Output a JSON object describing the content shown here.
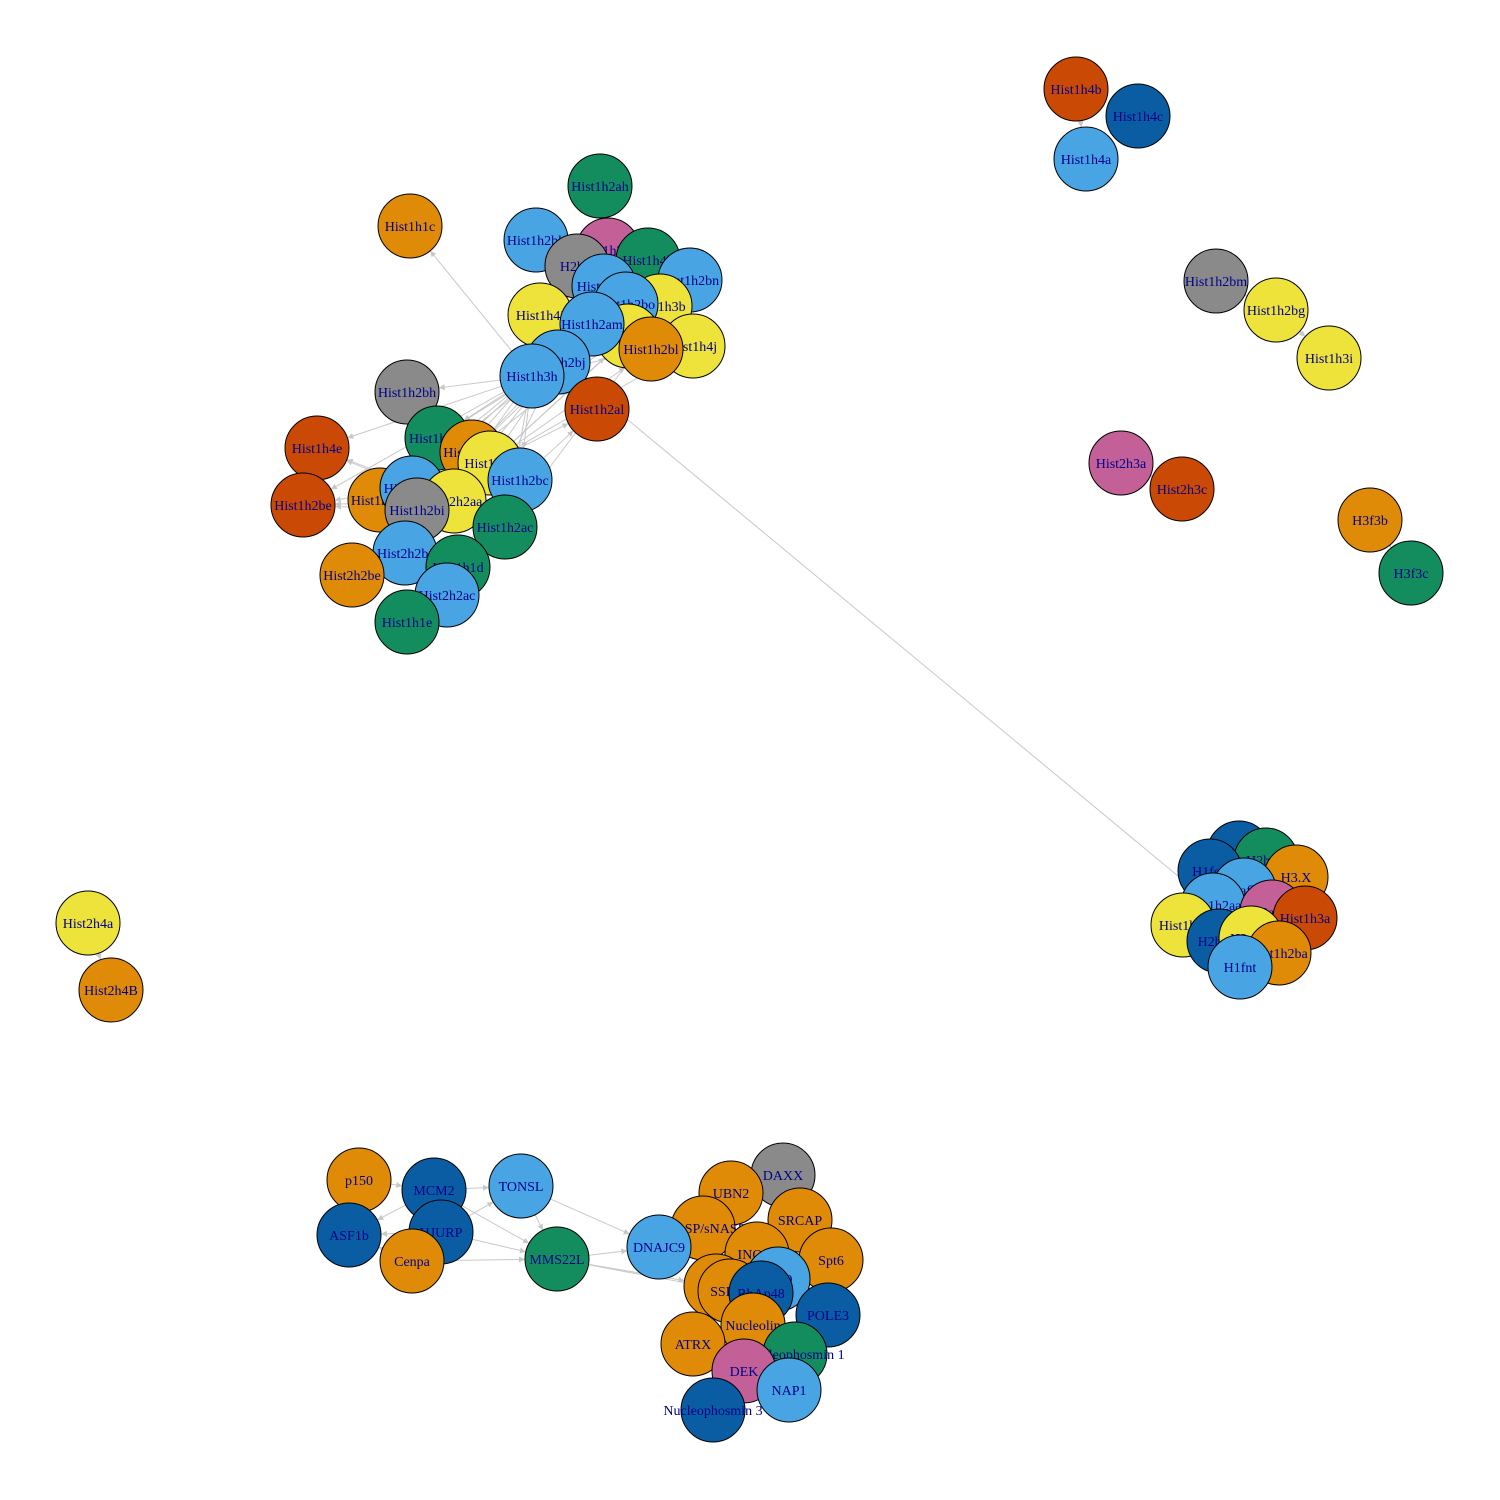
{
  "colors": {
    "orange": "#E08B08",
    "lightblue": "#49A4E4",
    "darkblue": "#0A5DA2",
    "green": "#148D5E",
    "yellow": "#EDE33A",
    "red": "#CA4A05",
    "pink": "#C26097",
    "gray": "#8A8A8A",
    "edge": "#C8C8C8",
    "label": "#00008B"
  },
  "nodes": [
    {
      "label": "Hist1h2ah",
      "color": "green"
    },
    {
      "label": "Hist1h1c",
      "color": "orange"
    },
    {
      "label": "Hist1h2bk",
      "color": "lightblue"
    },
    {
      "label": "Hist1h2ag",
      "color": "pink"
    },
    {
      "label": "Hist1h4k",
      "color": "green"
    },
    {
      "label": "H2bfs",
      "color": "gray"
    },
    {
      "label": "Hist1h2bn",
      "color": "lightblue"
    },
    {
      "label": "Hist1h4i",
      "color": "yellow"
    },
    {
      "label": "Hist1h3b",
      "color": "yellow"
    },
    {
      "label": "Hist1h4j",
      "color": "yellow"
    },
    {
      "label": "Hist1h2ai",
      "color": "lightblue"
    },
    {
      "label": "Hist1h2bo",
      "color": "lightblue"
    },
    {
      "label": "Hist1h2aj",
      "color": "yellow"
    },
    {
      "label": "Hist1h2bl",
      "color": "orange"
    },
    {
      "label": "Hist1h2am",
      "color": "lightblue"
    },
    {
      "label": "Hist1h2bj",
      "color": "lightblue"
    },
    {
      "label": "Hist1h3h",
      "color": "lightblue"
    },
    {
      "label": "Hist1h2al",
      "color": "red"
    },
    {
      "label": "Hist1h2bh",
      "color": "gray"
    },
    {
      "label": "Hist1h2bf",
      "color": "green"
    },
    {
      "label": "Hist1h4e",
      "color": "red"
    },
    {
      "label": "Hist1h2ad",
      "color": "orange"
    },
    {
      "label": "Hist1h3d",
      "color": "yellow"
    },
    {
      "label": "Hist1h2bc",
      "color": "lightblue"
    },
    {
      "label": "Hist1h2be",
      "color": "red"
    },
    {
      "label": "Hist1h2bd",
      "color": "orange"
    },
    {
      "label": "Hist1h2ae",
      "color": "lightblue"
    },
    {
      "label": "Hist2h2aa",
      "color": "yellow"
    },
    {
      "label": "Hist1h2bi",
      "color": "gray"
    },
    {
      "label": "Hist1h2aa",
      "color": "pink"
    },
    {
      "label": "Hist1h2ac",
      "color": "green"
    },
    {
      "label": "Hist2h2bf",
      "color": "lightblue"
    },
    {
      "label": "Hist1h1d",
      "color": "green"
    },
    {
      "label": "Hist2h2be",
      "color": "orange"
    },
    {
      "label": "Hist2h2ac",
      "color": "lightblue"
    },
    {
      "label": "Hist1h1e",
      "color": "green"
    },
    {
      "label": "Hist1h4b",
      "color": "red"
    },
    {
      "label": "Hist1h4c",
      "color": "darkblue"
    },
    {
      "label": "Hist1h4a",
      "color": "lightblue"
    },
    {
      "label": "Hist1h2bm",
      "color": "gray"
    },
    {
      "label": "Hist1h2bg",
      "color": "yellow"
    },
    {
      "label": "Hist1h3i",
      "color": "yellow"
    },
    {
      "label": "Hist2h3a",
      "color": "pink"
    },
    {
      "label": "Hist2h3c",
      "color": "red"
    },
    {
      "label": "H3f3b",
      "color": "orange"
    },
    {
      "label": "H3f3c",
      "color": "green"
    },
    {
      "label": "Hist2h4a",
      "color": "yellow"
    },
    {
      "label": "Hist2h4B",
      "color": "orange"
    },
    {
      "label": "Hist3h3",
      "color": "darkblue"
    },
    {
      "label": "H2bfm",
      "color": "green"
    },
    {
      "label": "H1foo",
      "color": "darkblue"
    },
    {
      "label": "H3.X",
      "color": "orange"
    },
    {
      "label": "H2afb1",
      "color": "lightblue"
    },
    {
      "label": "Hist1h2aa",
      "color": "lightblue"
    },
    {
      "label": "H2afb3",
      "color": "pink"
    },
    {
      "label": "Hist1h3a",
      "color": "red"
    },
    {
      "label": "Hist1h1t",
      "color": "yellow"
    },
    {
      "label": "H2bfwt",
      "color": "darkblue"
    },
    {
      "label": "H2afb2",
      "color": "yellow"
    },
    {
      "label": "Hist1h2ba",
      "color": "orange"
    },
    {
      "label": "H1fnt",
      "color": "lightblue"
    },
    {
      "label": "p150",
      "color": "orange"
    },
    {
      "label": "MCM2",
      "color": "darkblue"
    },
    {
      "label": "TONSL",
      "color": "lightblue"
    },
    {
      "label": "ASF1b",
      "color": "darkblue"
    },
    {
      "label": "HJURP",
      "color": "darkblue"
    },
    {
      "label": "Cenpa",
      "color": "orange"
    },
    {
      "label": "MMS22L",
      "color": "green"
    },
    {
      "label": "DAXX",
      "color": "gray"
    },
    {
      "label": "UBN2",
      "color": "orange"
    },
    {
      "label": "SRCAP",
      "color": "orange"
    },
    {
      "label": "tNASP/sNASP",
      "color": "orange"
    },
    {
      "label": "DNAJC9",
      "color": "lightblue"
    },
    {
      "label": "INO80",
      "color": "orange"
    },
    {
      "label": "Spt6",
      "color": "orange"
    },
    {
      "label": "Spt16",
      "color": "orange"
    },
    {
      "label": "SSRP1",
      "color": "orange"
    },
    {
      "label": "P400",
      "color": "lightblue"
    },
    {
      "label": "RbAp48",
      "color": "darkblue"
    },
    {
      "label": "POLE3",
      "color": "darkblue"
    },
    {
      "label": "Nucleolin",
      "color": "orange"
    },
    {
      "label": "ATRX",
      "color": "orange"
    },
    {
      "label": "Nucleophosmin 1",
      "color": "green"
    },
    {
      "label": "DEK",
      "color": "pink"
    },
    {
      "label": "NAP1",
      "color": "lightblue"
    },
    {
      "label": "Nucleophosmin 3",
      "color": "darkblue"
    }
  ],
  "edges": [
    [
      "Hist1h3h",
      "Hist1h1c"
    ],
    [
      "Hist1h3h",
      "Hist1h2bh"
    ],
    [
      "Hist1h3h",
      "Hist1h4e"
    ],
    [
      "Hist1h3h",
      "Hist1h2be"
    ],
    [
      "Hist1h3h",
      "Hist1h2bd"
    ],
    [
      "Hist1h3h",
      "Hist1h2bf"
    ],
    [
      "Hist1h3h",
      "Hist1h2ae"
    ],
    [
      "Hist1h3h",
      "Hist2h2bf"
    ],
    [
      "Hist1h3h",
      "Hist2h2be"
    ],
    [
      "Hist1h3h",
      "Hist1h2al"
    ],
    [
      "Hist1h3h",
      "Hist1h2ac"
    ],
    [
      "Hist1h3h",
      "Hist1h2bc"
    ],
    [
      "Hist1h3h",
      "Hist1h2am"
    ],
    [
      "Hist1h3h",
      "Hist1h4i"
    ],
    [
      "Hist1h3h",
      "Hist1h2bl"
    ],
    [
      "Hist1h3d",
      "Hist1h2bl"
    ],
    [
      "Hist1h3d",
      "Hist1h2aj"
    ],
    [
      "Hist1h3d",
      "Hist1h2al"
    ],
    [
      "Hist1h3d",
      "Hist1h4j"
    ],
    [
      "Hist1h3d",
      "Hist1h2bn"
    ],
    [
      "Hist1h3d",
      "Hist1h2bj"
    ],
    [
      "Hist1h2ad",
      "Hist1h2bj"
    ],
    [
      "Hist1h2ad",
      "Hist1h3b"
    ],
    [
      "Hist1h2ad",
      "Hist1h2bo"
    ],
    [
      "Hist2h2aa",
      "Hist1h4e"
    ],
    [
      "Hist2h2aa",
      "Hist1h2be"
    ],
    [
      "Hist1h2ae",
      "Hist1h4e"
    ],
    [
      "Hist1h2ae",
      "Hist1h2be"
    ],
    [
      "Hist1h2bi",
      "Hist1h2be"
    ],
    [
      "Hist1h2aa",
      "Hist1h2bj"
    ],
    [
      "Hist1h2ac",
      "Hist1h2bn"
    ],
    [
      "Hist1h2bc",
      "Hist1h2al"
    ],
    [
      "Hist1h2bf",
      "Hist1h2bj"
    ],
    [
      "Hist1h2bd",
      "Hist1h2bj"
    ],
    [
      "Hist2h2bf",
      "Hist1h2bj"
    ],
    [
      "Hist1h1d",
      "Hist1h2bj"
    ],
    [
      "Hist1h2ah",
      "Hist1h2ag"
    ],
    [
      "Hist1h4b",
      "Hist1h4a"
    ],
    [
      "Hist1h2bm",
      "Hist1h2bg"
    ],
    [
      "Hist1h2bg",
      "Hist1h3i"
    ],
    [
      "Hist2h3a",
      "Hist2h3c"
    ],
    [
      "H3f3b",
      "H3f3c"
    ],
    [
      "Hist2h4a",
      "Hist2h4B"
    ],
    [
      "p150",
      "MCM2"
    ],
    [
      "p150",
      "ASF1b"
    ],
    [
      "MCM2",
      "TONSL"
    ],
    [
      "MCM2",
      "ASF1b"
    ],
    [
      "HJURP",
      "ASF1b"
    ],
    [
      "HJURP",
      "TONSL"
    ],
    [
      "HJURP",
      "MMS22L"
    ],
    [
      "Cenpa",
      "ASF1b"
    ],
    [
      "Cenpa",
      "HJURP"
    ],
    [
      "Cenpa",
      "MMS22L"
    ],
    [
      "MCM2",
      "MMS22L"
    ],
    [
      "TONSL",
      "MMS22L"
    ],
    [
      "TONSL",
      "DNAJC9"
    ],
    [
      "MMS22L",
      "DNAJC9"
    ],
    [
      "MMS22L",
      "Spt16"
    ],
    [
      "MMS22L",
      "SSRP1"
    ],
    [
      "DNAJC9",
      "tNASP/sNASP"
    ],
    [
      "DNAJC9",
      "INO80"
    ]
  ]
}
